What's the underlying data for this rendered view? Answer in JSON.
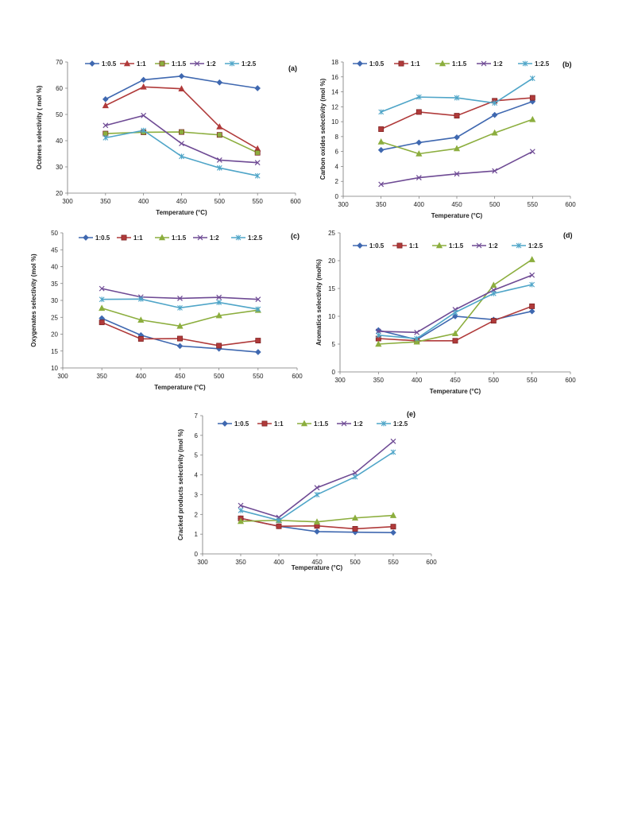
{
  "colors": {
    "1:0.5": "#3F68B0",
    "1:1": "#B03A3A",
    "1:1.5": "#8CAE3E",
    "1:2": "#6E4A94",
    "1:2.5": "#4FA5C8"
  },
  "chart_data": [
    {
      "type": "line",
      "panel": "(a)",
      "xlabel": "Temperature (°C)",
      "ylabel": "Octenes selectivity ( mol %)",
      "xlim": [
        300,
        600
      ],
      "ylim": [
        20,
        70
      ],
      "xticks": [
        "300",
        "350",
        "400",
        "450",
        "500",
        "550",
        "600"
      ],
      "yticks": [
        "20",
        "30",
        "40",
        "50",
        "60",
        "70"
      ],
      "legend_placement": "top",
      "x": [
        350,
        400,
        450,
        500,
        550
      ],
      "series": [
        {
          "name": "1:0.5",
          "marker": "diamond",
          "values": [
            55.8,
            63.2,
            64.6,
            62.2,
            60.0
          ]
        },
        {
          "name": "1:1",
          "marker": "triangle",
          "values": [
            53.4,
            60.5,
            59.8,
            45.3,
            36.9
          ]
        },
        {
          "name": "1:1.5",
          "marker": "square",
          "values": [
            42.7,
            43.2,
            43.3,
            42.2,
            35.4
          ]
        },
        {
          "name": "1:2",
          "marker": "x",
          "values": [
            45.8,
            49.6,
            38.9,
            32.6,
            31.6
          ]
        },
        {
          "name": "1:2.5",
          "marker": "star",
          "values": [
            41.1,
            43.9,
            34.0,
            29.6,
            26.6
          ]
        }
      ]
    },
    {
      "type": "line",
      "panel": "(b)",
      "xlabel": "Temperature (°C)",
      "ylabel": "Carbon oxides selectivity (mol %)",
      "xlim": [
        300,
        600
      ],
      "ylim": [
        0,
        18
      ],
      "xticks": [
        "300",
        "350",
        "400",
        "450",
        "500",
        "550",
        "600"
      ],
      "yticks": [
        "0",
        "2",
        "4",
        "6",
        "8",
        "10",
        "12",
        "14",
        "16",
        "18"
      ],
      "legend_placement": "top",
      "x": [
        350,
        400,
        450,
        500,
        550
      ],
      "series": [
        {
          "name": "1:0.5",
          "marker": "diamond",
          "values": [
            6.2,
            7.2,
            7.9,
            10.9,
            12.7
          ]
        },
        {
          "name": "1:1",
          "marker": "square",
          "values": [
            9.0,
            11.3,
            10.8,
            12.8,
            13.2
          ]
        },
        {
          "name": "1:1.5",
          "marker": "triangle",
          "values": [
            7.3,
            5.7,
            6.4,
            8.5,
            10.3
          ]
        },
        {
          "name": "1:2",
          "marker": "x",
          "values": [
            1.6,
            2.5,
            3.0,
            3.4,
            6.0
          ]
        },
        {
          "name": "1:2.5",
          "marker": "star",
          "values": [
            11.3,
            13.3,
            13.2,
            12.5,
            15.8
          ]
        }
      ]
    },
    {
      "type": "line",
      "panel": "(c)",
      "xlabel": "Temperature (°C)",
      "ylabel": "Oxygenates selectivity (mol %)",
      "xlim": [
        300,
        600
      ],
      "ylim": [
        10,
        50
      ],
      "xticks": [
        "300",
        "350",
        "400",
        "450",
        "500",
        "550",
        "600"
      ],
      "yticks": [
        "10",
        "15",
        "20",
        "25",
        "30",
        "35",
        "40",
        "45",
        "50"
      ],
      "legend_placement": "top",
      "x": [
        350,
        400,
        450,
        500,
        550
      ],
      "series": [
        {
          "name": "1:0.5",
          "marker": "diamond",
          "values": [
            24.7,
            19.7,
            16.5,
            15.7,
            14.7
          ]
        },
        {
          "name": "1:1",
          "marker": "square",
          "values": [
            23.5,
            18.6,
            18.7,
            16.6,
            18.1
          ]
        },
        {
          "name": "1:1.5",
          "marker": "triangle",
          "values": [
            27.7,
            24.2,
            22.4,
            25.5,
            27.1
          ]
        },
        {
          "name": "1:2",
          "marker": "x",
          "values": [
            33.5,
            31.0,
            30.6,
            30.9,
            30.3
          ]
        },
        {
          "name": "1:2.5",
          "marker": "star",
          "values": [
            30.3,
            30.4,
            27.8,
            29.4,
            27.4
          ]
        }
      ]
    },
    {
      "type": "line",
      "panel": "(d)",
      "xlabel": "Temperature (°C)",
      "ylabel": "Aromatics selectivity (mol%)",
      "xlim": [
        300,
        600
      ],
      "ylim": [
        0,
        25
      ],
      "xticks": [
        "300",
        "350",
        "400",
        "450",
        "500",
        "550",
        "600"
      ],
      "yticks": [
        "0",
        "5",
        "10",
        "15",
        "20",
        "25"
      ],
      "legend_placement": "top",
      "x": [
        350,
        400,
        450,
        500,
        550
      ],
      "series": [
        {
          "name": "1:0.5",
          "marker": "diamond",
          "values": [
            7.5,
            5.8,
            10.0,
            9.4,
            10.9
          ]
        },
        {
          "name": "1:1",
          "marker": "square",
          "values": [
            6.0,
            5.6,
            5.6,
            9.2,
            11.8
          ]
        },
        {
          "name": "1:1.5",
          "marker": "triangle",
          "values": [
            5.0,
            5.4,
            6.9,
            15.6,
            20.2
          ]
        },
        {
          "name": "1:2",
          "marker": "x",
          "values": [
            7.3,
            7.1,
            11.2,
            14.7,
            17.4
          ]
        },
        {
          "name": "1:2.5",
          "marker": "star",
          "values": [
            6.6,
            6.0,
            10.7,
            14.1,
            15.7
          ]
        }
      ]
    },
    {
      "type": "line",
      "panel": "(e)",
      "xlabel": "Temperature (°C)",
      "ylabel": "Cracked products selectivity (mol %)",
      "xlim": [
        300,
        600
      ],
      "ylim": [
        0,
        7
      ],
      "xticks": [
        "300",
        "350",
        "400",
        "450",
        "500",
        "550",
        "600"
      ],
      "yticks": [
        "0",
        "1",
        "2",
        "3",
        "4",
        "5",
        "6",
        "7"
      ],
      "legend_placement": "top",
      "x": [
        350,
        400,
        450,
        500,
        550
      ],
      "series": [
        {
          "name": "1:0.5",
          "marker": "diamond",
          "values": [
            1.8,
            1.4,
            1.13,
            1.1,
            1.08
          ]
        },
        {
          "name": "1:1",
          "marker": "square",
          "values": [
            1.8,
            1.4,
            1.42,
            1.27,
            1.38
          ]
        },
        {
          "name": "1:1.5",
          "marker": "triangle",
          "values": [
            1.65,
            1.7,
            1.62,
            1.82,
            1.95
          ]
        },
        {
          "name": "1:2",
          "marker": "x",
          "values": [
            2.45,
            1.85,
            3.35,
            4.1,
            5.7
          ]
        },
        {
          "name": "1:2.5",
          "marker": "star",
          "values": [
            2.2,
            1.7,
            3.0,
            3.9,
            5.15
          ]
        }
      ]
    }
  ]
}
